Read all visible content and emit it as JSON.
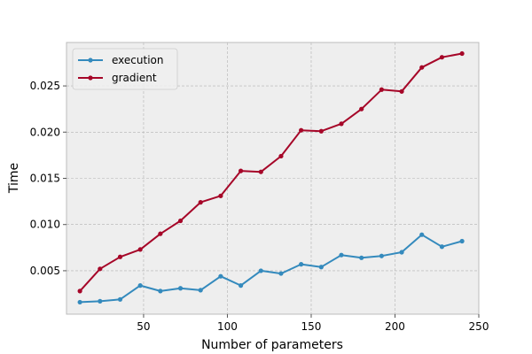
{
  "chart_data": {
    "type": "line",
    "xlabel": "Number of parameters",
    "ylabel": "Time",
    "xlim": [
      4,
      250
    ],
    "ylim": [
      0.0003,
      0.0297
    ],
    "xticks": [
      50,
      100,
      150,
      200,
      250
    ],
    "yticks": [
      0.005,
      0.01,
      0.015,
      0.02,
      0.025
    ],
    "xtick_labels": [
      "50",
      "100",
      "150",
      "200",
      "250"
    ],
    "ytick_labels": [
      "0.005",
      "0.010",
      "0.015",
      "0.020",
      "0.025"
    ],
    "grid": true,
    "legend_position": "top-left",
    "x": [
      12,
      24,
      36,
      48,
      60,
      72,
      84,
      96,
      108,
      120,
      132,
      144,
      156,
      168,
      180,
      192,
      204,
      216,
      228,
      240
    ],
    "series": [
      {
        "name": "execution",
        "color": "#348abd",
        "values": [
          0.0016,
          0.0017,
          0.0019,
          0.0034,
          0.0028,
          0.0031,
          0.0029,
          0.0044,
          0.0034,
          0.005,
          0.0047,
          0.0057,
          0.0054,
          0.0067,
          0.0064,
          0.0066,
          0.007,
          0.0089,
          0.0076,
          0.0082
        ]
      },
      {
        "name": "gradient",
        "color": "#a60628",
        "values": [
          0.0028,
          0.0052,
          0.0065,
          0.0073,
          0.009,
          0.0104,
          0.0124,
          0.0131,
          0.0158,
          0.0157,
          0.0174,
          0.0202,
          0.0201,
          0.0209,
          0.0225,
          0.0246,
          0.0244,
          0.027,
          0.0281,
          0.0285
        ]
      }
    ]
  }
}
